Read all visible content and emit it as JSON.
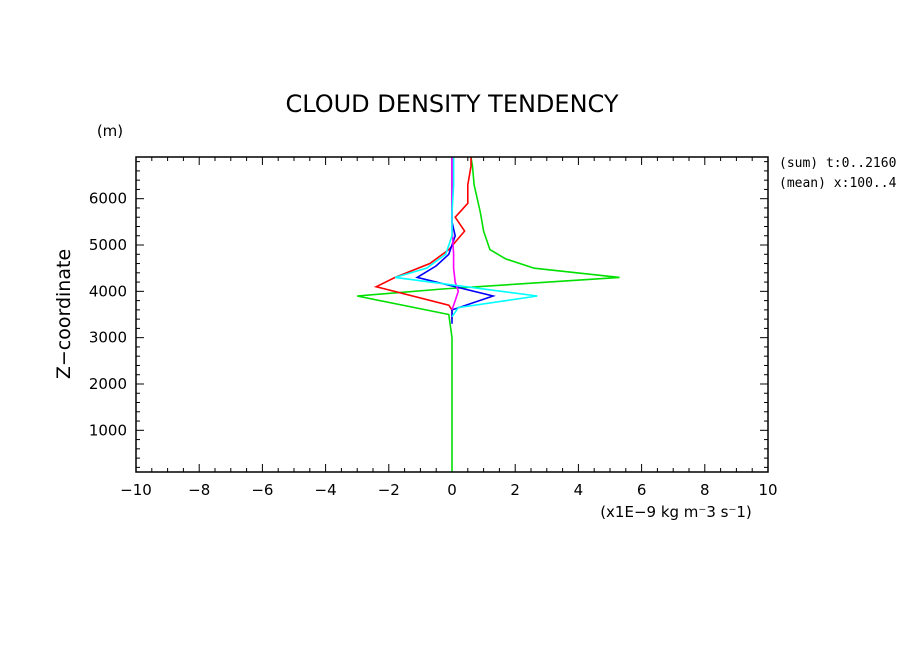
{
  "chart_data": {
    "type": "line",
    "title": "CLOUD DENSITY TENDENCY",
    "ylabel": "Z−coordinate",
    "yunit": "(m)",
    "xunit": "(x1E−9 kg m⁻3 s⁻1)",
    "xlim": [
      -10,
      10
    ],
    "ylim": [
      100,
      6900
    ],
    "xticks": [
      "−10",
      "−8",
      "−6",
      "−4",
      "−2",
      "0",
      "2",
      "4",
      "6",
      "8",
      "10"
    ],
    "xtick_values": [
      -10,
      -8,
      -6,
      -4,
      -2,
      0,
      2,
      4,
      6,
      8,
      10
    ],
    "yticks": [
      "1000",
      "2000",
      "3000",
      "4000",
      "5000",
      "6000"
    ],
    "ytick_values": [
      1000,
      2000,
      3000,
      4000,
      5000,
      6000
    ],
    "annotations": [
      "(sum) t:0..2160",
      "(mean) x:100..4"
    ],
    "grid": false,
    "series": [
      {
        "color": "#00e000",
        "x": [
          0,
          0,
          0,
          0,
          -0.1,
          -3.0,
          -0.3,
          5.3,
          2.6,
          1.7,
          1.2,
          1.0,
          0.9,
          0.7,
          0.65,
          0.6
        ],
        "y": [
          100,
          1000,
          2000,
          3000,
          3500,
          3900,
          4050,
          4300,
          4500,
          4700,
          4900,
          5300,
          5700,
          6300,
          6700,
          6900
        ]
      },
      {
        "color": "#ff0000",
        "x": [
          0,
          0,
          0,
          -0.1,
          -2.4,
          -1.8,
          -0.7,
          -0.1,
          0.4,
          0.1,
          0.5,
          0.5,
          0.6,
          0.6
        ],
        "y": [
          3400,
          3500,
          3600,
          3700,
          4100,
          4300,
          4600,
          4900,
          5300,
          5600,
          5900,
          6300,
          6700,
          6900
        ]
      },
      {
        "color": "#0000ff",
        "x": [
          0,
          0,
          0,
          0,
          1.3,
          -1.1,
          -0.5,
          -0.1,
          0.1,
          0,
          0,
          0,
          0
        ],
        "y": [
          3300,
          3350,
          3450,
          3600,
          3900,
          4300,
          4550,
          4800,
          5200,
          5500,
          6000,
          6500,
          6900
        ]
      },
      {
        "color": "#ff00ff",
        "x": [
          0,
          0.1,
          0.2,
          0.1,
          0.05,
          0.05,
          0,
          0,
          0
        ],
        "y": [
          3600,
          3800,
          4000,
          4200,
          4500,
          4800,
          5400,
          6000,
          6900
        ]
      },
      {
        "color": "#00ffff",
        "x": [
          0,
          0.2,
          2.7,
          -1.8,
          -0.8,
          -0.2,
          0,
          0,
          0.05,
          0.05
        ],
        "y": [
          3450,
          3650,
          3900,
          4300,
          4500,
          4800,
          5200,
          5700,
          6300,
          6900
        ]
      }
    ]
  }
}
